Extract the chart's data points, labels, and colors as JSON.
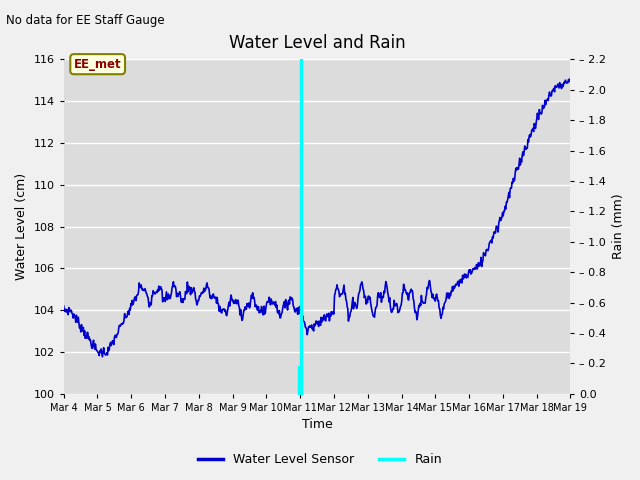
{
  "title": "Water Level and Rain",
  "subtitle": "No data for EE Staff Gauge",
  "xlabel": "Time",
  "ylabel_left": "Water Level (cm)",
  "ylabel_right": "Rain (mm)",
  "annotation": "EE_met",
  "xlim_days": [
    4,
    19
  ],
  "ylim_left": [
    100,
    116
  ],
  "ylim_right": [
    0.0,
    2.2
  ],
  "yticks_left": [
    100,
    102,
    104,
    106,
    108,
    110,
    112,
    114,
    116
  ],
  "yticks_right": [
    0.0,
    0.2,
    0.4,
    0.6,
    0.8,
    1.0,
    1.2,
    1.4,
    1.6,
    1.8,
    2.0,
    2.2
  ],
  "xtick_labels": [
    "Mar 4",
    "Mar 5",
    "Mar 6",
    "Mar 7",
    "Mar 8",
    "Mar 9",
    "Mar 10",
    "Mar 11",
    "Mar 12",
    "Mar 13",
    "Mar 14",
    "Mar 15",
    "Mar 16",
    "Mar 17",
    "Mar 18",
    "Mar 19"
  ],
  "water_color": "#0000cc",
  "rain_color": "#00ffff",
  "bg_color": "#dcdcdc",
  "fig_bg_color": "#f0f0f0",
  "legend_water": "Water Level Sensor",
  "legend_rain": "Rain",
  "title_fontsize": 12,
  "label_fontsize": 9,
  "tick_fontsize": 8
}
